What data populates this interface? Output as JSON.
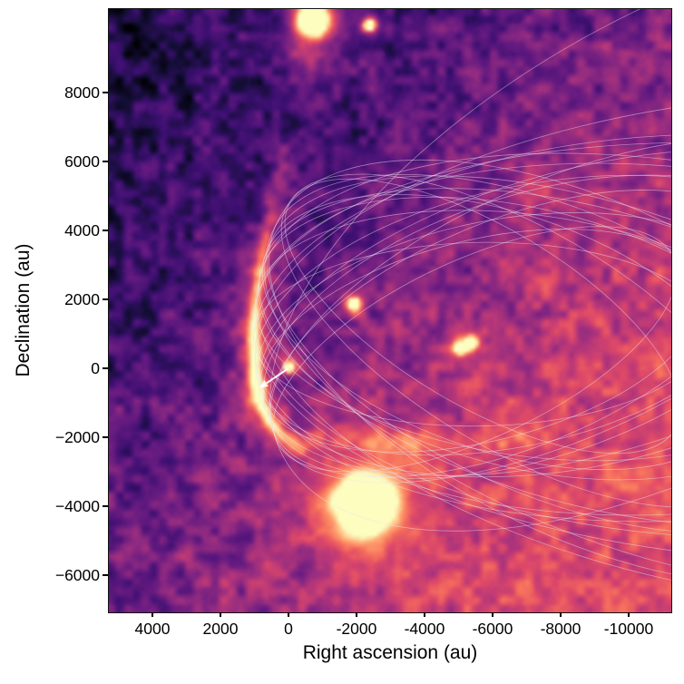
{
  "figure": {
    "xlabel": "Right ascension (au)",
    "ylabel": "Declination (au)",
    "x_ticks": [
      "4000",
      "2000",
      "0",
      "-2000",
      "-4000",
      "-6000",
      "-8000",
      "-10000"
    ],
    "y_ticks": [
      "8000",
      "6000",
      "4000",
      "2000",
      "0",
      "−2000",
      "−4000",
      "−6000"
    ]
  },
  "chart_data": {
    "type": "heatmap",
    "description": "False-colour (magma colormap) astronomical image of a dusty star-forming field with a family of fitted orbital ellipses overlaid; a white arrow marks the proper motion of the central source toward the bright rim.",
    "xlabel": "Right ascension (au)",
    "ylabel": "Declination (au)",
    "xlim": [
      5280,
      -11253
    ],
    "ylim": [
      -7079,
      10421
    ],
    "x_tick_values": [
      4000,
      2000,
      0,
      -2000,
      -4000,
      -6000,
      -8000,
      -10000
    ],
    "y_tick_values": [
      8000,
      6000,
      4000,
      2000,
      0,
      -2000,
      -4000,
      -6000
    ],
    "colormap": "magma",
    "colormap_stops": [
      "#000004",
      "#140e36",
      "#3b0f70",
      "#641a80",
      "#8c2981",
      "#b73779",
      "#de4968",
      "#f7705c",
      "#fe9f6d",
      "#fecf92",
      "#fcfdbf"
    ],
    "point_sources": [
      {
        "name": "central-source",
        "ra_au": 0,
        "dec_au": 0,
        "sigma_au": 100,
        "amp": 1.15
      },
      {
        "name": "bright-star-top",
        "ra_au": -720,
        "dec_au": 10105,
        "sigma_au": 275,
        "amp": 1.75
      },
      {
        "name": "small-star-top",
        "ra_au": -2373,
        "dec_au": 9974,
        "sigma_au": 125,
        "amp": 1.0
      },
      {
        "name": "star-mid-field",
        "ra_au": -1920,
        "dec_au": 1842,
        "sigma_au": 115,
        "amp": 1.15
      },
      {
        "name": "double-star-a",
        "ra_au": -5040,
        "dec_au": 553,
        "sigma_au": 115,
        "amp": 1.0
      },
      {
        "name": "double-star-b",
        "ra_au": -5360,
        "dec_au": 711,
        "sigma_au": 125,
        "amp": 1.0
      },
      {
        "name": "bright-nebulous-star-bottom",
        "ra_au": -2213,
        "dec_au": -4000,
        "sigma_au": 470,
        "amp": 1.85
      }
    ],
    "diffuse_glows": [
      {
        "ra_au": -320,
        "dec_au": 9105,
        "sigma_au": 480,
        "amp": 0.22
      },
      {
        "ra_au": -7387,
        "dec_au": 5158,
        "sigma_au": 400,
        "amp": 0.14
      },
      {
        "ra_au": -7440,
        "dec_au": 2447,
        "sigma_au": 350,
        "amp": 0.1
      },
      {
        "ra_au": -10427,
        "dec_au": -421,
        "sigma_au": 5800,
        "amp": 0.12
      },
      {
        "ra_au": -2160,
        "dec_au": -7079,
        "sigma_au": 4960,
        "amp": 0.08
      }
    ],
    "bright_rim": {
      "comment": "glowing orange crescent along the periapsis envelope of the orbit family",
      "points_au": [
        [
          160,
          6342,
          0.1
        ],
        [
          320,
          5211,
          0.14
        ],
        [
          667,
          3842,
          0.24
        ],
        [
          933,
          2263,
          0.4
        ],
        [
          1040,
          1079,
          0.52
        ],
        [
          987,
          -105,
          0.6
        ],
        [
          880,
          -895,
          0.6
        ],
        [
          587,
          -1553,
          0.42
        ],
        [
          187,
          -2026,
          0.3
        ],
        [
          -347,
          -2395,
          0.18
        ]
      ]
    },
    "lower_rim_glow": {
      "points_au": [
        [
          -853,
          -1895,
          0.1
        ],
        [
          -2987,
          -2211,
          0.13
        ],
        [
          -5120,
          -2263,
          0.12
        ],
        [
          -6987,
          -2079,
          0.1
        ]
      ]
    },
    "orbit_family": {
      "count": 24,
      "envelope_center_au": [
        -6507,
        1000
      ],
      "envelope_radius_au": 7547,
      "psi_deg_range": [
        151,
        212
      ],
      "a_au_range": [
        6400,
        15200
      ],
      "axis_ratio_range": [
        0.4,
        0.48
      ],
      "stroke_color": "#e9e5f4"
    },
    "motion_arrow": {
      "from_au": [
        0,
        0
      ],
      "to_au": [
        870,
        -580
      ],
      "color": "#ffffff"
    }
  }
}
